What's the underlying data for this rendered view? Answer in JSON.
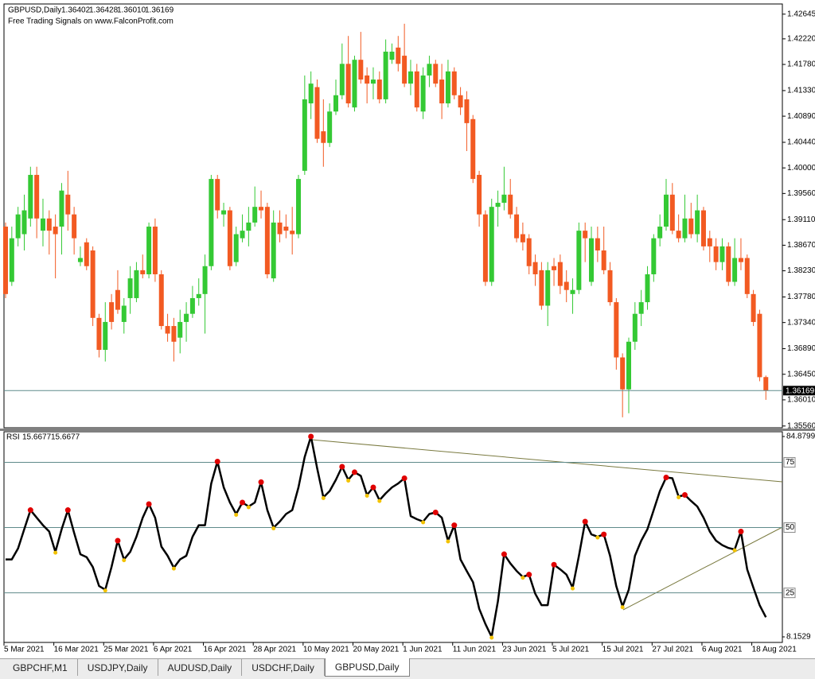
{
  "chart_data": [
    {
      "type": "candlestick",
      "title": "GBPUSD,Daily",
      "subtitle": "Free Trading Signals on www.FalconProfit.com",
      "up_color": "#34c934",
      "down_color": "#f25a22",
      "price_line_color": "#5f8a8a",
      "open": [
        1.3899,
        1.3804,
        1.3879,
        1.3886,
        1.3913,
        1.3988,
        1.3892,
        1.3913,
        1.3899,
        1.3899,
        1.3954,
        1.392,
        1.3838,
        1.3872,
        1.3858,
        1.3742,
        1.3687,
        1.3769,
        1.379,
        1.3735,
        1.3776,
        1.3776,
        1.3824,
        1.3817,
        1.3899,
        1.3817,
        1.3728,
        1.3728,
        1.3708,
        1.3735,
        1.3749,
        1.3776,
        1.3783,
        1.3831,
        1.3981,
        1.392,
        1.3927,
        1.3838,
        1.3879,
        1.3892,
        1.3906,
        1.3933,
        1.3933,
        1.381,
        1.3906,
        1.3899,
        1.3892,
        1.3886,
        1.3995,
        1.4111,
        1.4139,
        1.4063,
        1.4043,
        1.4097,
        1.4125,
        1.4179,
        1.4104,
        1.4186,
        1.4159,
        1.4145,
        1.4152,
        1.4118,
        1.4186,
        1.4207,
        1.4193,
        1.4145,
        1.4166,
        1.4097,
        1.4159,
        1.4179,
        1.4152,
        1.4111,
        1.4166,
        1.4125,
        1.4118,
        1.4084,
        1.3988,
        1.392,
        1.3804,
        1.3933,
        1.394,
        1.3954,
        1.392,
        1.3886,
        1.3879,
        1.3838,
        1.3824,
        1.3763,
        1.3831,
        1.3838,
        1.3804,
        1.3783,
        1.379,
        1.3892,
        1.3804,
        1.3879,
        1.3858,
        1.3824,
        1.3769,
        1.3674,
        1.3619,
        1.3701,
        1.3749,
        1.3769,
        1.3817,
        1.3879,
        1.3899,
        1.3954,
        1.3892,
        1.3879,
        1.3913,
        1.3886,
        1.3927,
        1.3879,
        1.3865,
        1.3838,
        1.3865,
        1.3804,
        1.3845,
        1.3845,
        1.3783,
        1.3749,
        1.36402
      ],
      "high": [
        1.3906,
        1.3899,
        1.3933,
        1.3954,
        1.4002,
        1.4002,
        1.3947,
        1.3927,
        1.392,
        1.3974,
        1.3995,
        1.3933,
        1.3865,
        1.3879,
        1.3865,
        1.3749,
        1.3769,
        1.3783,
        1.3824,
        1.3776,
        1.3831,
        1.3838,
        1.3851,
        1.3906,
        1.3913,
        1.3824,
        1.3749,
        1.3742,
        1.3756,
        1.3769,
        1.3797,
        1.381,
        1.3851,
        1.3988,
        1.3988,
        1.394,
        1.3933,
        1.3899,
        1.392,
        1.3933,
        1.3968,
        1.3961,
        1.394,
        1.3927,
        1.3927,
        1.392,
        1.3933,
        1.3988,
        1.4159,
        1.4166,
        1.4152,
        1.4118,
        1.4111,
        1.4152,
        1.4214,
        1.4227,
        1.4193,
        1.4234,
        1.4173,
        1.4173,
        1.4166,
        1.4221,
        1.4214,
        1.4227,
        1.4248,
        1.4186,
        1.4179,
        1.4173,
        1.4193,
        1.4186,
        1.4179,
        1.4186,
        1.4173,
        1.4139,
        1.4132,
        1.4091,
        1.3995,
        1.3927,
        1.3947,
        1.3961,
        1.4002,
        1.3981,
        1.3933,
        1.3906,
        1.3886,
        1.3851,
        1.3838,
        1.3838,
        1.3845,
        1.3851,
        1.3824,
        1.381,
        1.3906,
        1.3906,
        1.3899,
        1.3899,
        1.3899,
        1.3838,
        1.3776,
        1.3681,
        1.3708,
        1.3769,
        1.379,
        1.3831,
        1.3886,
        1.392,
        1.3981,
        1.3974,
        1.392,
        1.3954,
        1.394,
        1.3954,
        1.3933,
        1.3892,
        1.3879,
        1.3879,
        1.3872,
        1.3879,
        1.3879,
        1.3851,
        1.379,
        1.3756,
        1.36428
      ],
      "low": [
        1.3776,
        1.3797,
        1.3865,
        1.3858,
        1.3899,
        1.3879,
        1.3865,
        1.3851,
        1.381,
        1.3851,
        1.3892,
        1.3851,
        1.3831,
        1.3824,
        1.3728,
        1.3674,
        1.3667,
        1.3722,
        1.3749,
        1.3715,
        1.3749,
        1.3769,
        1.381,
        1.381,
        1.3804,
        1.3722,
        1.3701,
        1.3667,
        1.3681,
        1.3701,
        1.3742,
        1.3763,
        1.3715,
        1.3824,
        1.3913,
        1.3899,
        1.3824,
        1.3831,
        1.3872,
        1.3865,
        1.3899,
        1.3913,
        1.381,
        1.3804,
        1.3872,
        1.3879,
        1.3851,
        1.3879,
        1.3988,
        1.4084,
        1.4043,
        1.4002,
        1.4036,
        1.4091,
        1.4118,
        1.4104,
        1.4097,
        1.4145,
        1.4111,
        1.4118,
        1.4111,
        1.4111,
        1.4179,
        1.4166,
        1.4139,
        1.4125,
        1.4097,
        1.4084,
        1.4139,
        1.4139,
        1.4084,
        1.4104,
        1.4118,
        1.4091,
        1.4029,
        1.3974,
        1.3899,
        1.3797,
        1.3797,
        1.3899,
        1.3927,
        1.3913,
        1.3872,
        1.3858,
        1.3817,
        1.3797,
        1.3756,
        1.3728,
        1.3797,
        1.3783,
        1.3769,
        1.3749,
        1.3783,
        1.3838,
        1.3797,
        1.3838,
        1.3817,
        1.3763,
        1.3653,
        1.3571,
        1.3578,
        1.3687,
        1.3728,
        1.3756,
        1.3804,
        1.3865,
        1.3892,
        1.3886,
        1.3872,
        1.3872,
        1.3879,
        1.3872,
        1.3858,
        1.3838,
        1.3824,
        1.3824,
        1.3797,
        1.3797,
        1.3824,
        1.3776,
        1.3728,
        1.3633,
        1.3601
      ],
      "close": [
        1.3783,
        1.3879,
        1.392,
        1.3927,
        1.3988,
        1.3913,
        1.3913,
        1.3892,
        1.3886,
        1.3961,
        1.392,
        1.3879,
        1.3845,
        1.3831,
        1.3742,
        1.3687,
        1.3735,
        1.3735,
        1.3756,
        1.3763,
        1.381,
        1.3824,
        1.3817,
        1.3899,
        1.3817,
        1.3728,
        1.3715,
        1.3701,
        1.3735,
        1.3749,
        1.3776,
        1.3783,
        1.3831,
        1.3981,
        1.3927,
        1.3927,
        1.3831,
        1.3886,
        1.3892,
        1.3906,
        1.3933,
        1.3927,
        1.3817,
        1.3906,
        1.3886,
        1.3892,
        1.3886,
        1.3981,
        1.4118,
        1.4145,
        1.405,
        1.4043,
        1.4097,
        1.4125,
        1.4179,
        1.4111,
        1.4186,
        1.4152,
        1.4145,
        1.4152,
        1.4118,
        1.42,
        1.42,
        1.4179,
        1.4145,
        1.4166,
        1.4104,
        1.4159,
        1.4179,
        1.4145,
        1.4111,
        1.4166,
        1.4125,
        1.4104,
        1.4077,
        1.3981,
        1.392,
        1.3804,
        1.3933,
        1.394,
        1.3954,
        1.392,
        1.3879,
        1.3872,
        1.3831,
        1.3817,
        1.3763,
        1.3824,
        1.3824,
        1.3797,
        1.379,
        1.379,
        1.3892,
        1.3879,
        1.3879,
        1.3858,
        1.3824,
        1.3769,
        1.3674,
        1.3619,
        1.3701,
        1.3749,
        1.3769,
        1.3817,
        1.3879,
        1.3899,
        1.3954,
        1.3892,
        1.3879,
        1.3913,
        1.3886,
        1.3927,
        1.3865,
        1.3865,
        1.3838,
        1.3865,
        1.3804,
        1.3845,
        1.3838,
        1.3783,
        1.3735,
        1.364,
        1.36169
      ],
      "value_labels": {
        "open": "1.36402",
        "high": "1.36428",
        "low": "1.36010",
        "close": "1.36169"
      },
      "ylim": [
        1.3553,
        1.4282
      ],
      "yticks": [
        1.42645,
        {
          "value": 1.4222,
          "label": "1.42220"
        },
        {
          "value": 1.4178,
          "label": "1.41780"
        },
        {
          "value": 1.4133,
          "label": "1.41330"
        },
        {
          "value": 1.4089,
          "label": "1.40890"
        },
        {
          "value": 1.4044,
          "label": "1.40440"
        },
        {
          "value": 1.4,
          "label": "1.40000"
        },
        {
          "value": 1.3956,
          "label": "1.39560"
        },
        {
          "value": 1.3911,
          "label": "1.39110"
        },
        {
          "value": 1.3867,
          "label": "1.38670"
        },
        {
          "value": 1.3823,
          "label": "1.38230"
        },
        {
          "value": 1.3778,
          "label": "1.37780"
        },
        {
          "value": 1.3734,
          "label": "1.37340"
        },
        {
          "value": 1.3689,
          "label": "1.36890"
        },
        {
          "value": 1.3645,
          "label": "1.36450"
        },
        {
          "value": 1.3601,
          "label": "1.36010"
        },
        {
          "value": 1.3556,
          "label": "1.35560"
        }
      ]
    },
    {
      "type": "line",
      "title": "RSI",
      "categories": [
        "5 Mar 2021",
        null,
        null,
        null,
        null,
        null,
        null,
        null,
        "16 Mar 2021",
        null,
        null,
        null,
        null,
        null,
        null,
        null,
        "25 Mar 2021",
        null,
        null,
        null,
        null,
        null,
        null,
        null,
        "6 Apr 2021",
        null,
        null,
        null,
        null,
        null,
        null,
        null,
        "16 Apr 2021",
        null,
        null,
        null,
        null,
        null,
        null,
        null,
        "28 Apr 2021",
        null,
        null,
        null,
        null,
        null,
        null,
        null,
        "10 May 2021",
        null,
        null,
        null,
        null,
        null,
        null,
        null,
        "20 May 2021",
        null,
        null,
        null,
        null,
        null,
        null,
        null,
        "1 Jun 2021",
        null,
        null,
        null,
        null,
        null,
        null,
        null,
        "11 Jun 2021",
        null,
        null,
        null,
        null,
        null,
        null,
        null,
        "23 Jun 2021",
        null,
        null,
        null,
        null,
        null,
        null,
        null,
        "5 Jul 2021",
        null,
        null,
        null,
        null,
        null,
        null,
        null,
        "15 Jul 2021",
        null,
        null,
        null,
        null,
        null,
        null,
        null,
        "27 Jul 2021",
        null,
        null,
        null,
        null,
        null,
        null,
        null,
        "6 Aug 2021",
        null,
        null,
        null,
        null,
        null,
        null,
        null,
        "18 Aug 2021",
        null,
        null
      ],
      "series": [
        {
          "name": "RSI",
          "color": "#000000",
          "values": [
            37.8,
            37.8,
            42,
            49.4,
            56.7,
            53.8,
            50.9,
            48.5,
            40.7,
            49.4,
            56.7,
            48,
            39.8,
            38.7,
            34.9,
            27.6,
            26.2,
            34.9,
            45,
            37.8,
            40.7,
            46.5,
            53.8,
            59,
            53.8,
            42.7,
            39.2,
            34.6,
            37.8,
            39.2,
            46.5,
            50.9,
            50.9,
            66.9,
            75.3,
            65.4,
            59.6,
            55.2,
            59.6,
            58.1,
            59.6,
            67.4,
            56.7,
            50,
            52.3,
            55.2,
            56.7,
            65.4,
            77,
            84.8799,
            72.7,
            61.6,
            64,
            68.3,
            73.3,
            68.3,
            71.2,
            69.8,
            62.5,
            65.4,
            60.5,
            63.1,
            65.4,
            66.9,
            68.9,
            54.4,
            53.2,
            52.3,
            55.2,
            55.8,
            53.8,
            45,
            50.9,
            37.8,
            33.4,
            29.1,
            18.9,
            13.1,
            8.1529,
            21.8,
            39.8,
            36.3,
            33.4,
            31.1,
            32,
            24.7,
            20.3,
            20.3,
            35.8,
            34,
            32,
            27,
            39.2,
            52.3,
            47.4,
            46.5,
            47.4,
            39.2,
            27.6,
            19.8,
            26.2,
            39.2,
            45,
            49.4,
            56.7,
            64,
            69.2,
            68.9,
            61.9,
            62.5,
            60.2,
            58.1,
            53.8,
            48.5,
            45,
            43.3,
            42.2,
            41.6,
            48.5,
            34,
            27,
            20.3,
            15.6677
          ]
        }
      ],
      "peak_color": "#e00000",
      "trough_color": "#f2c200",
      "level_color": "#5f8a8a",
      "levels": [
        75,
        50,
        25
      ],
      "ylim": [
        8.1529,
        84.8799
      ],
      "yticks": [
        8.1529,
        84.8799
      ]
    }
  ],
  "tabs": [
    "GBPCHF,M1",
    "USDJPY,Daily",
    "AUDUSD,Daily",
    "USDCHF,Daily",
    "GBPUSD,Daily"
  ],
  "active_tab": 4
}
